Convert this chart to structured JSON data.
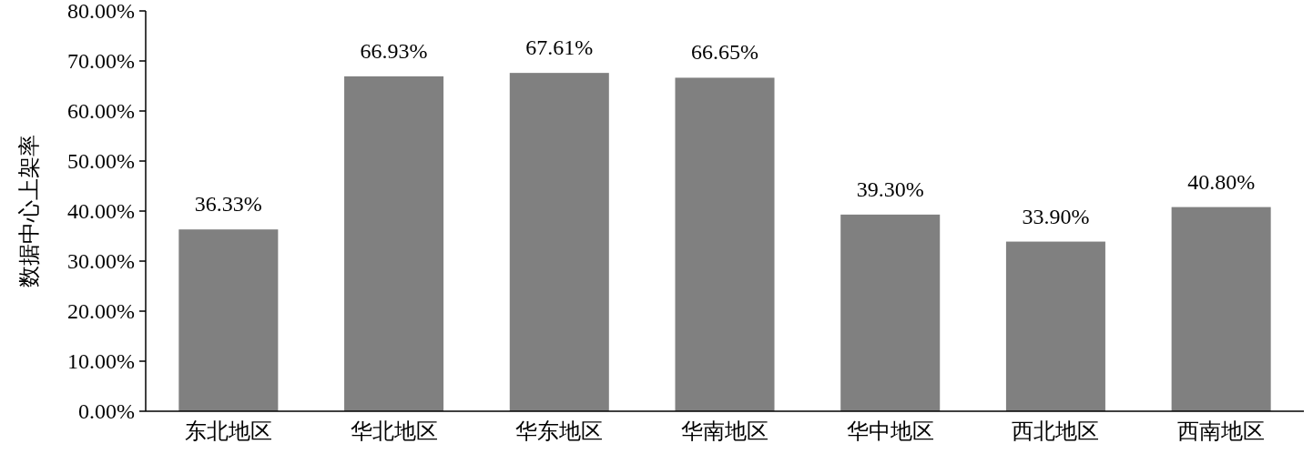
{
  "chart_data": {
    "type": "bar",
    "ylabel": "数据中心上架率",
    "categories": [
      "东北地区",
      "华北地区",
      "华东地区",
      "华南地区",
      "华中地区",
      "西北地区",
      "西南地区"
    ],
    "values": [
      36.33,
      66.93,
      67.61,
      66.65,
      39.3,
      33.9,
      40.8
    ],
    "value_labels": [
      "36.33%",
      "66.93%",
      "67.61%",
      "66.65%",
      "39.30%",
      "33.90%",
      "40.80%"
    ],
    "color": "#808080",
    "ylim": [
      0,
      80
    ],
    "yticks": [
      {
        "value": 0,
        "label": "0.00%"
      },
      {
        "value": 10,
        "label": "10.00%"
      },
      {
        "value": 20,
        "label": "20.00%"
      },
      {
        "value": 30,
        "label": "30.00%"
      },
      {
        "value": 40,
        "label": "40.00%"
      },
      {
        "value": 50,
        "label": "50.00%"
      },
      {
        "value": 60,
        "label": "60.00%"
      },
      {
        "value": 70,
        "label": "70.00%"
      },
      {
        "value": 80,
        "label": "80.00%"
      }
    ]
  }
}
